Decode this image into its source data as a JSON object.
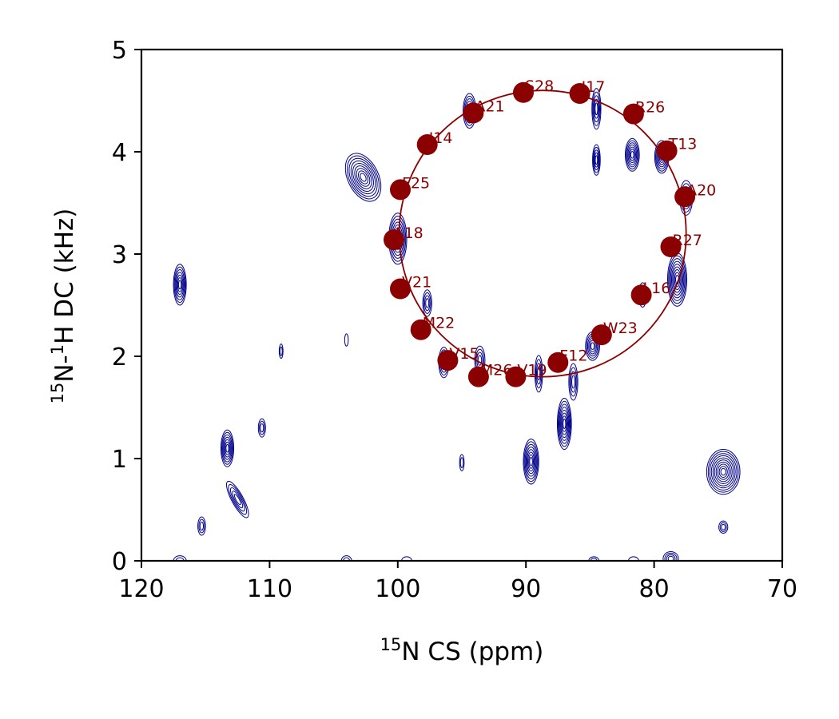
{
  "chart_data": {
    "type": "scatter",
    "title": "",
    "xlabel": {
      "sup": "15",
      "text": "N CS (ppm)"
    },
    "ylabel": {
      "sup1": "15",
      "mid": "N-",
      "sup2": "1",
      "rest": "H DC (kHz)"
    },
    "xlim": [
      120,
      70
    ],
    "ylim": [
      0,
      5
    ],
    "x_reversed": true,
    "xticks": [
      120,
      110,
      100,
      90,
      80,
      70
    ],
    "yticks": [
      0,
      1,
      2,
      3,
      4,
      5
    ],
    "grid": false,
    "colors": {
      "contour": "#00008b",
      "fit": "#8b0000"
    },
    "fit_circle": {
      "center_x": 88.7,
      "center_y": 3.2,
      "radius_ppm": 11.2,
      "radius_khz": 1.4
    },
    "fitted_peaks": [
      {
        "label": "S28",
        "x": 90.2,
        "y": 4.58
      },
      {
        "label": "I17",
        "x": 85.8,
        "y": 4.57
      },
      {
        "label": "R26",
        "x": 81.6,
        "y": 4.37
      },
      {
        "label": "T13",
        "x": 79.0,
        "y": 4.01
      },
      {
        "label": "A20",
        "x": 77.6,
        "y": 3.56
      },
      {
        "label": "R27",
        "x": 78.7,
        "y": 3.07
      },
      {
        "label": "L16",
        "x": 81.0,
        "y": 2.6
      },
      {
        "label": "W23",
        "x": 84.1,
        "y": 2.21
      },
      {
        "label": "F12",
        "x": 87.5,
        "y": 1.94
      },
      {
        "label": "V19",
        "x": 90.8,
        "y": 1.8
      },
      {
        "label": "M26",
        "x": 93.7,
        "y": 1.8
      },
      {
        "label": "V15",
        "x": 96.1,
        "y": 1.96
      },
      {
        "label": "M22",
        "x": 98.2,
        "y": 2.26
      },
      {
        "label": "V21",
        "x": 99.8,
        "y": 2.66
      },
      {
        "label": "L18",
        "x": 100.3,
        "y": 3.14
      },
      {
        "label": "F25",
        "x": 99.8,
        "y": 3.63
      },
      {
        "label": "I14",
        "x": 97.7,
        "y": 4.07
      },
      {
        "label": "A21",
        "x": 94.1,
        "y": 4.38
      }
    ],
    "contour_peaks": [
      {
        "x": 117.0,
        "y": 2.7,
        "sx": 0.5,
        "sy": 0.2,
        "n": 7
      },
      {
        "x": 113.3,
        "y": 1.1,
        "sx": 0.5,
        "sy": 0.18,
        "n": 7
      },
      {
        "x": 112.5,
        "y": 0.6,
        "sx": 0.45,
        "sy": 0.2,
        "n": 5,
        "rot": -0.5
      },
      {
        "x": 110.6,
        "y": 1.3,
        "sx": 0.28,
        "sy": 0.09,
        "n": 3
      },
      {
        "x": 115.3,
        "y": 0.34,
        "sx": 0.3,
        "sy": 0.09,
        "n": 3
      },
      {
        "x": 109.1,
        "y": 2.05,
        "sx": 0.15,
        "sy": 0.07,
        "n": 2
      },
      {
        "x": 104.0,
        "y": 2.16,
        "sx": 0.14,
        "sy": 0.06,
        "n": 1
      },
      {
        "x": 102.7,
        "y": 3.75,
        "sx": 1.2,
        "sy": 0.25,
        "n": 9,
        "rot": -0.45
      },
      {
        "x": 100.0,
        "y": 3.15,
        "sx": 0.7,
        "sy": 0.25,
        "n": 8
      },
      {
        "x": 97.7,
        "y": 2.52,
        "sx": 0.35,
        "sy": 0.13,
        "n": 4
      },
      {
        "x": 96.4,
        "y": 1.94,
        "sx": 0.4,
        "sy": 0.15,
        "n": 5
      },
      {
        "x": 95.0,
        "y": 0.96,
        "sx": 0.18,
        "sy": 0.08,
        "n": 2
      },
      {
        "x": 94.4,
        "y": 4.4,
        "sx": 0.5,
        "sy": 0.17,
        "n": 6
      },
      {
        "x": 93.6,
        "y": 1.96,
        "sx": 0.4,
        "sy": 0.14,
        "n": 4
      },
      {
        "x": 89.6,
        "y": 0.97,
        "sx": 0.6,
        "sy": 0.22,
        "n": 8
      },
      {
        "x": 89.0,
        "y": 1.83,
        "sx": 0.3,
        "sy": 0.18,
        "n": 4
      },
      {
        "x": 87.0,
        "y": 1.34,
        "sx": 0.55,
        "sy": 0.25,
        "n": 8
      },
      {
        "x": 86.3,
        "y": 1.75,
        "sx": 0.35,
        "sy": 0.18,
        "n": 4
      },
      {
        "x": 84.8,
        "y": 2.1,
        "sx": 0.55,
        "sy": 0.14,
        "n": 6
      },
      {
        "x": 84.5,
        "y": 3.92,
        "sx": 0.3,
        "sy": 0.15,
        "n": 5
      },
      {
        "x": 84.5,
        "y": 4.42,
        "sx": 0.35,
        "sy": 0.2,
        "n": 5
      },
      {
        "x": 81.7,
        "y": 3.97,
        "sx": 0.55,
        "sy": 0.16,
        "n": 7
      },
      {
        "x": 80.9,
        "y": 2.6,
        "sx": 0.3,
        "sy": 0.12,
        "n": 3
      },
      {
        "x": 79.4,
        "y": 3.95,
        "sx": 0.55,
        "sy": 0.16,
        "n": 7
      },
      {
        "x": 78.2,
        "y": 2.75,
        "sx": 0.75,
        "sy": 0.26,
        "n": 9
      },
      {
        "x": 77.5,
        "y": 3.55,
        "sx": 0.5,
        "sy": 0.17,
        "n": 5
      },
      {
        "x": 74.6,
        "y": 0.87,
        "sx": 1.3,
        "sy": 0.22,
        "n": 10
      },
      {
        "x": 74.6,
        "y": 0.33,
        "sx": 0.35,
        "sy": 0.06,
        "n": 3
      },
      {
        "x": 117.0,
        "y": 0.0,
        "sx": 0.5,
        "sy": 0.05,
        "n": 2
      },
      {
        "x": 104.0,
        "y": 0.0,
        "sx": 0.4,
        "sy": 0.05,
        "n": 2
      },
      {
        "x": 99.3,
        "y": 0.0,
        "sx": 0.4,
        "sy": 0.04,
        "n": 1
      },
      {
        "x": 84.7,
        "y": 0.0,
        "sx": 0.4,
        "sy": 0.04,
        "n": 2
      },
      {
        "x": 81.6,
        "y": 0.0,
        "sx": 0.4,
        "sy": 0.04,
        "n": 1
      },
      {
        "x": 78.7,
        "y": 0.02,
        "sx": 0.6,
        "sy": 0.07,
        "n": 4
      }
    ]
  }
}
